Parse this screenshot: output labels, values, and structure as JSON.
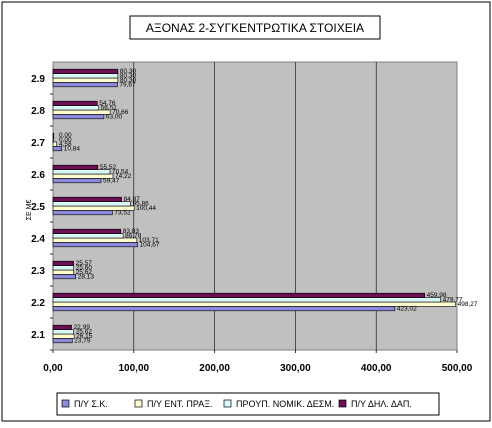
{
  "chart_data": {
    "type": "bar",
    "orientation": "horizontal",
    "title": "ΑΞΟΝΑΣ 2-ΣΥΓΚΕΝΤΡΩΤΙΚΑ ΣΤΟΙΧΕΙΑ",
    "ylabel": "ΣΕ Μ€",
    "xlabel": "",
    "xlim": [
      0,
      500
    ],
    "xticks": [
      0,
      100,
      200,
      300,
      400,
      500
    ],
    "xtick_labels": [
      "0,00",
      "100,00",
      "200,00",
      "300,00",
      "400,00",
      "500,00"
    ],
    "grid": true,
    "legend_position": "bottom",
    "categories": [
      "2.1",
      "2.2",
      "2.3",
      "2.4",
      "2.5",
      "2.6",
      "2.7",
      "2.8",
      "2.9"
    ],
    "series": [
      {
        "name": "Π/Υ Σ.Κ.",
        "color": "#8a8ad8",
        "values": [
          23.79,
          423.02,
          28.13,
          104.67,
          73.52,
          59.47,
          10.84,
          63.0,
          79.67
        ],
        "labels": [
          "23,79",
          "423,02",
          "28,13",
          "104,67",
          "73,52",
          "59,47",
          "10,84",
          "63,00",
          "79,67"
        ]
      },
      {
        "name": "Π/Υ ΕΝΤ. ΠΡΑΞ.",
        "color": "#fffcd0",
        "values": [
          26.15,
          498.27,
          25.62,
          103.71,
          100.44,
          74.22,
          4.58,
          70.66,
          80.3
        ],
        "labels": [
          "26,15",
          "498,27",
          "25,62",
          "103,71",
          "100,44",
          "74,22",
          "4,58",
          "70,66",
          "80,30"
        ]
      },
      {
        "name": "ΠΡΟΥΠ. ΝΟΜΙΚ. ΔΕΣΜ.",
        "color": "#d8f8f8",
        "values": [
          25.62,
          479.77,
          25.6,
          86.78,
          95.86,
          70.54,
          0.0,
          56.51,
          80.3
        ],
        "labels": [
          "25,62",
          "479,77",
          "25,60",
          "86,78",
          "95,86",
          "70,54",
          "0,00",
          "56,51",
          "80,30"
        ]
      },
      {
        "name": "Π/Υ ΔΗΛ. ΔΑΠ.",
        "color": "#6a0f52",
        "values": [
          22.99,
          459.98,
          25.57,
          83.83,
          84.87,
          55.52,
          0.0,
          54.76,
          80.3
        ],
        "labels": [
          "22,99",
          "459,98",
          "25,57",
          "83,83",
          "84,87",
          "55,52",
          "0,00",
          "54,76",
          "80,30"
        ]
      }
    ]
  }
}
